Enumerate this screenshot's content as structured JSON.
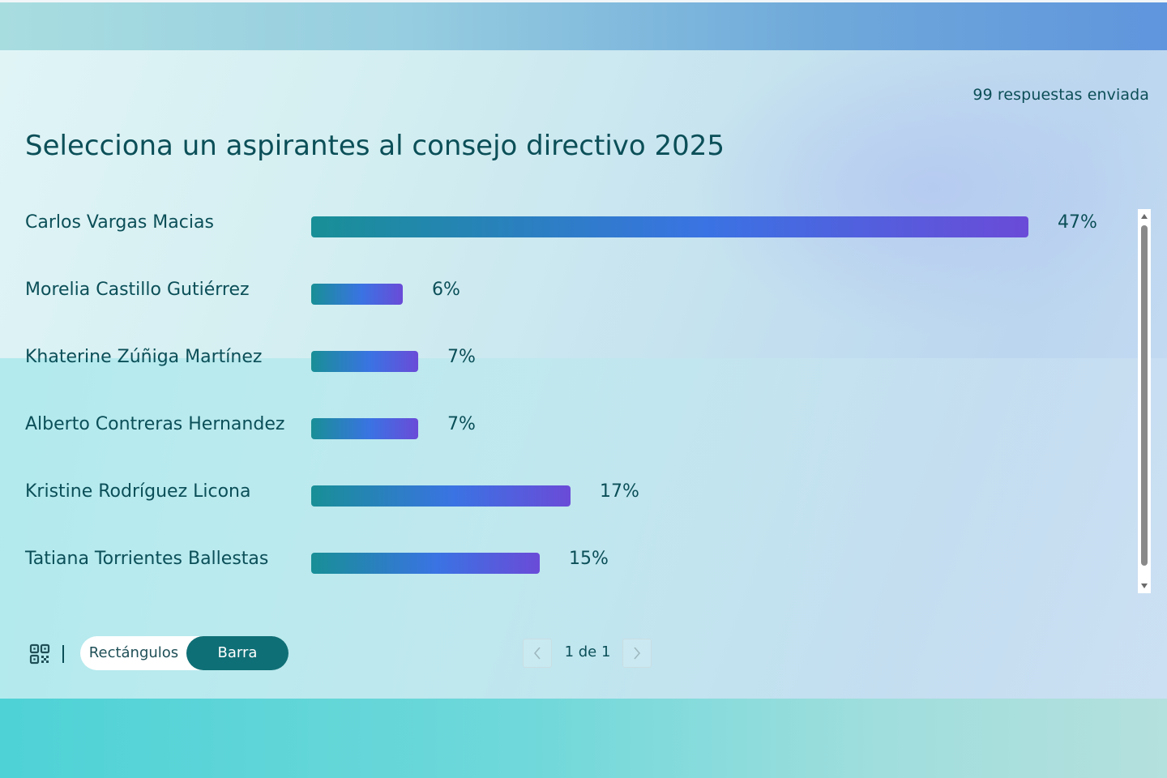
{
  "header": {
    "responses_label": "99 respuestas enviada",
    "question_title": "Selecciona un aspirantes al consejo directivo 2025"
  },
  "chart_data": {
    "type": "bar",
    "orientation": "horizontal",
    "categories": [
      "Carlos Vargas Macias",
      "Morelia Castillo Gutiérrez",
      "Khaterine Zúñiga Martínez",
      "Alberto Contreras Hernandez",
      "Kristine Rodríguez Licona",
      "Tatiana Torrientes Ballestas"
    ],
    "values": [
      47,
      6,
      7,
      7,
      17,
      15
    ],
    "value_labels": [
      "47%",
      "6%",
      "7%",
      "7%",
      "17%",
      "15%"
    ],
    "unit": "%",
    "xlim": [
      0,
      47
    ],
    "grid": false,
    "legend": "none"
  },
  "footer": {
    "qr_icon": "qr-code-icon",
    "view_toggle": {
      "options": [
        "Rectángulos",
        "Barra"
      ],
      "selected": "Barra"
    },
    "pager": {
      "text": "1 de 1",
      "prev_icon": "chevron-left-icon",
      "next_icon": "chevron-right-icon"
    }
  },
  "colors": {
    "text_primary": "#0b4f58",
    "toggle_active": "#0f6f76",
    "bar_gradient_start": "#188f96",
    "bar_gradient_mid": "#3a73e3",
    "bar_gradient_end": "#6a4bd8"
  }
}
